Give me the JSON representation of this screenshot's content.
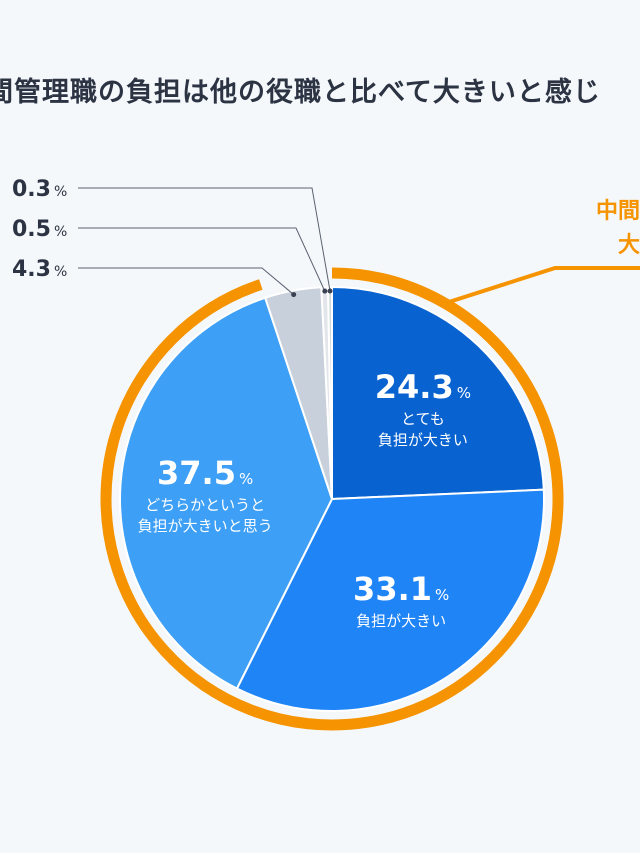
{
  "title": "間管理職の負担は他の役職と比べて大きいと感じ",
  "callout": {
    "line1": "中間",
    "line2": "大"
  },
  "colors": {
    "ring": "#f59300",
    "very_big": "#0862cf",
    "big": "#1f84f5",
    "somewhat_big": "#3d9ff5",
    "other1": "#c7d0db",
    "other2": "#e2e6ea",
    "other3": "#d3d8de"
  },
  "chart_data": {
    "type": "pie",
    "unit": "%",
    "slices": [
      {
        "label_lines": [
          "とても",
          "負担が大きい"
        ],
        "value": 24.3,
        "value_text": "24.3"
      },
      {
        "label_lines": [
          "負担が大きい"
        ],
        "value": 33.1,
        "value_text": "33.1"
      },
      {
        "label_lines": [
          "どちらかというと",
          "負担が大きいと思う"
        ],
        "value": 37.5,
        "value_text": "37.5"
      },
      {
        "label_lines": [],
        "value": 4.3,
        "value_text": "4.3"
      },
      {
        "label_lines": [],
        "value": 0.5,
        "value_text": "0.5"
      },
      {
        "label_lines": [],
        "value": 0.3,
        "value_text": "0.3"
      }
    ]
  }
}
